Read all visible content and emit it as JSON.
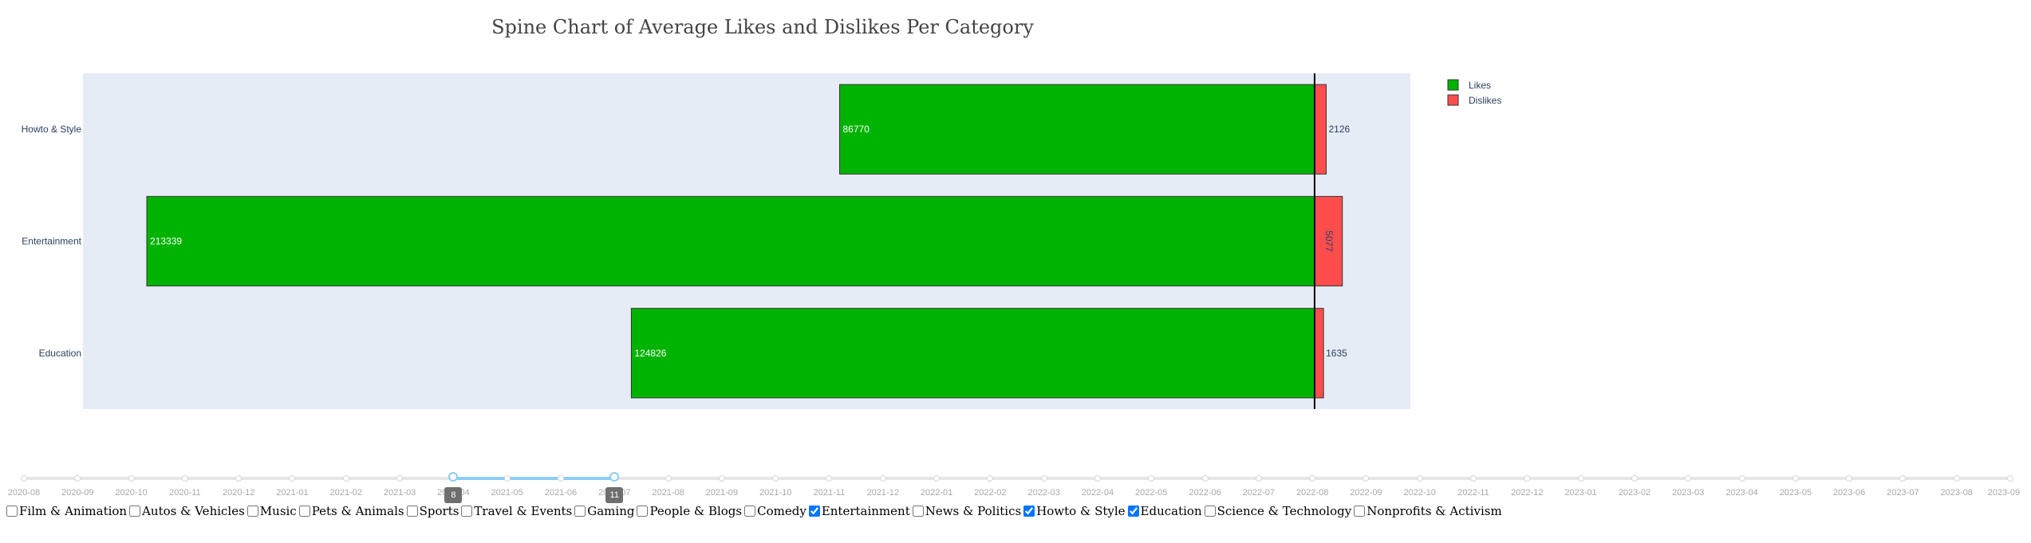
{
  "chart_data": {
    "type": "bar",
    "title": "Spine Chart of Average Likes and Dislikes Per Category",
    "orientation": "horizontal",
    "categories": [
      "Howto & Style",
      "Entertainment",
      "Education"
    ],
    "series": [
      {
        "name": "Likes",
        "values": [
          86770,
          213339,
          124826
        ],
        "color": "#00b300",
        "label_position": "inside-left"
      },
      {
        "name": "Dislikes",
        "values": [
          2126,
          5077,
          1635
        ],
        "color": "#ff4d4d",
        "label_position": "outside"
      }
    ],
    "xlim": [
      -225000,
      17500
    ],
    "spine_at": 0,
    "legend_position": "top-right",
    "plot_background": "#e5ecf6"
  },
  "slider": {
    "ticks": [
      "2020-08",
      "2020-09",
      "2020-10",
      "2020-11",
      "2020-12",
      "2021-01",
      "2021-02",
      "2021-03",
      "2021-04",
      "2021-05",
      "2021-06",
      "2021-07",
      "2021-08",
      "2021-09",
      "2021-10",
      "2021-11",
      "2021-12",
      "2022-01",
      "2022-02",
      "2022-03",
      "2022-04",
      "2022-05",
      "2022-06",
      "2022-07",
      "2022-08",
      "2022-09",
      "2022-10",
      "2022-11",
      "2022-12",
      "2023-01",
      "2023-02",
      "2023-03",
      "2023-04",
      "2023-05",
      "2023-06",
      "2023-07",
      "2023-08",
      "2023-09"
    ],
    "range_start_index": 8,
    "range_end_index": 11,
    "start_badge": "8",
    "end_badge": "11"
  },
  "checklist": [
    {
      "label": "Film & Animation",
      "checked": false
    },
    {
      "label": "Autos & Vehicles",
      "checked": false
    },
    {
      "label": "Music",
      "checked": false
    },
    {
      "label": "Pets & Animals",
      "checked": false
    },
    {
      "label": "Sports",
      "checked": false
    },
    {
      "label": "Travel & Events",
      "checked": false
    },
    {
      "label": "Gaming",
      "checked": false
    },
    {
      "label": "People & Blogs",
      "checked": false
    },
    {
      "label": "Comedy",
      "checked": false
    },
    {
      "label": "Entertainment",
      "checked": true
    },
    {
      "label": "News & Politics",
      "checked": false
    },
    {
      "label": "Howto & Style",
      "checked": true
    },
    {
      "label": "Education",
      "checked": true
    },
    {
      "label": "Science & Technology",
      "checked": false
    },
    {
      "label": "Nonprofits & Activism",
      "checked": false
    }
  ]
}
